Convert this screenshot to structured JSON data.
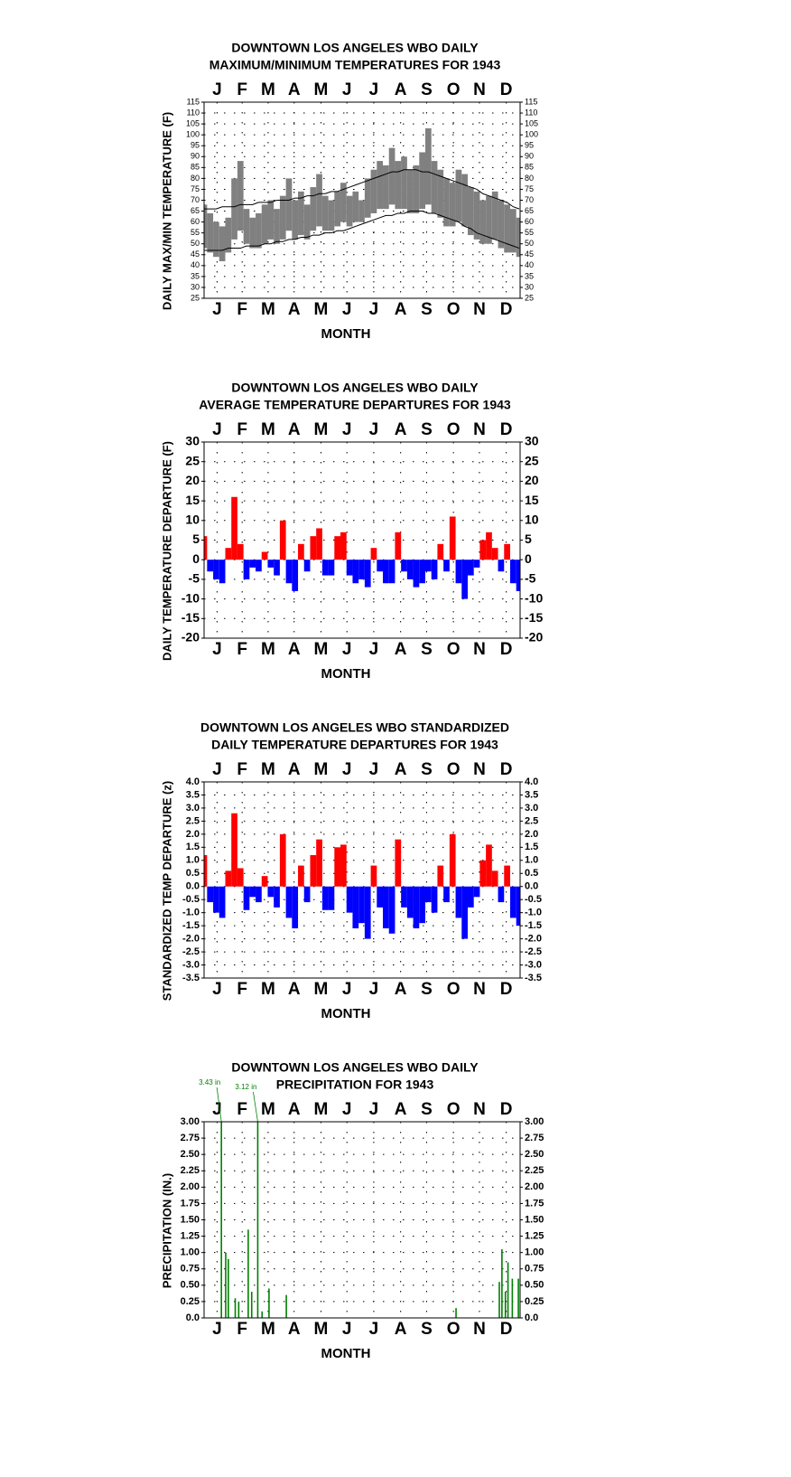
{
  "chart_data": [
    {
      "type": "range",
      "title": [
        "DOWNTOWN LOS ANGELES WBO DAILY",
        "MAXIMUM/MINIMUM TEMPERATURES FOR 1943"
      ],
      "xlabel": "MONTH",
      "ylabel": "DAILY MAX/MIN TEMPERATURE (F)",
      "xlim": [
        1,
        366
      ],
      "xticks": [
        {
          "value": 16,
          "label": "J"
        },
        {
          "value": 45,
          "label": "F"
        },
        {
          "value": 75,
          "label": "M"
        },
        {
          "value": 105,
          "label": "A"
        },
        {
          "value": 136,
          "label": "M"
        },
        {
          "value": 166,
          "label": "J"
        },
        {
          "value": 197,
          "label": "J"
        },
        {
          "value": 228,
          "label": "A"
        },
        {
          "value": 258,
          "label": "S"
        },
        {
          "value": 289,
          "label": "O"
        },
        {
          "value": 319,
          "label": "N"
        },
        {
          "value": 350,
          "label": "D"
        }
      ],
      "ylim": [
        25,
        115
      ],
      "yticks": [
        25,
        30,
        35,
        40,
        45,
        50,
        55,
        60,
        65,
        70,
        75,
        80,
        85,
        90,
        95,
        100,
        105,
        110,
        115
      ],
      "grid": true,
      "x": [
        1,
        8,
        15,
        22,
        29,
        36,
        43,
        50,
        57,
        64,
        71,
        78,
        85,
        92,
        99,
        106,
        113,
        120,
        127,
        134,
        141,
        148,
        155,
        162,
        169,
        176,
        183,
        190,
        197,
        204,
        211,
        218,
        225,
        232,
        239,
        246,
        253,
        260,
        267,
        274,
        281,
        288,
        295,
        302,
        309,
        316,
        323,
        330,
        337,
        344,
        351,
        358,
        365
      ],
      "series": [
        {
          "role": "high",
          "color": "#808080",
          "values": [
            68,
            64,
            60,
            58,
            62,
            80,
            88,
            66,
            62,
            64,
            68,
            70,
            66,
            72,
            80,
            70,
            74,
            68,
            76,
            82,
            72,
            70,
            74,
            78,
            72,
            74,
            70,
            80,
            84,
            88,
            86,
            94,
            88,
            90,
            84,
            86,
            92,
            103,
            88,
            84,
            80,
            78,
            84,
            82,
            76,
            74,
            70,
            72,
            74,
            70,
            68,
            66,
            62
          ]
        },
        {
          "role": "low",
          "color": "#808080",
          "values": [
            48,
            46,
            44,
            42,
            46,
            52,
            56,
            50,
            48,
            48,
            50,
            52,
            50,
            52,
            56,
            52,
            54,
            52,
            56,
            58,
            56,
            56,
            58,
            60,
            58,
            60,
            60,
            62,
            64,
            66,
            66,
            68,
            66,
            66,
            64,
            64,
            66,
            68,
            64,
            62,
            58,
            58,
            60,
            58,
            54,
            52,
            50,
            50,
            52,
            48,
            46,
            46,
            44
          ]
        },
        {
          "role": "line",
          "color": "#000000",
          "values": [
            66,
            66,
            66,
            67,
            67,
            67,
            68,
            68,
            68,
            69,
            69,
            69,
            70,
            70,
            70,
            71,
            71,
            72,
            72,
            73,
            73,
            74,
            74,
            75,
            76,
            77,
            78,
            79,
            80,
            81,
            82,
            83,
            83,
            84,
            84,
            84,
            83,
            83,
            82,
            81,
            80,
            79,
            78,
            77,
            76,
            75,
            73,
            72,
            71,
            70,
            69,
            67,
            66
          ]
        },
        {
          "role": "line",
          "color": "#000000",
          "values": [
            47,
            47,
            47,
            47,
            48,
            48,
            48,
            49,
            49,
            49,
            50,
            50,
            51,
            51,
            52,
            52,
            53,
            53,
            54,
            54,
            55,
            55,
            56,
            56,
            57,
            58,
            59,
            60,
            61,
            62,
            63,
            63,
            64,
            64,
            65,
            65,
            65,
            64,
            64,
            63,
            62,
            61,
            60,
            58,
            57,
            55,
            54,
            53,
            52,
            51,
            50,
            49,
            48
          ]
        }
      ]
    },
    {
      "type": "bar",
      "title": [
        "DOWNTOWN LOS ANGELES WBO DAILY",
        "AVERAGE TEMPERATURE DEPARTURES FOR 1943"
      ],
      "xlabel": "MONTH",
      "ylabel": "DAILY TEMPERATURE DEPARTURE (F)",
      "xlim": [
        1,
        366
      ],
      "xticks": [
        {
          "value": 16,
          "label": "J"
        },
        {
          "value": 45,
          "label": "F"
        },
        {
          "value": 75,
          "label": "M"
        },
        {
          "value": 105,
          "label": "A"
        },
        {
          "value": 136,
          "label": "M"
        },
        {
          "value": 166,
          "label": "J"
        },
        {
          "value": 197,
          "label": "J"
        },
        {
          "value": 228,
          "label": "A"
        },
        {
          "value": 258,
          "label": "S"
        },
        {
          "value": 289,
          "label": "O"
        },
        {
          "value": 319,
          "label": "N"
        },
        {
          "value": 350,
          "label": "D"
        }
      ],
      "ylim": [
        -20,
        30
      ],
      "yticks": [
        -20,
        -15,
        -10,
        -5,
        0,
        5,
        10,
        15,
        20,
        25,
        30
      ],
      "grid": true,
      "color_positive": "#ff0000",
      "color_negative": "#0000ff",
      "x": [
        1,
        8,
        15,
        22,
        29,
        36,
        43,
        50,
        57,
        64,
        71,
        78,
        85,
        92,
        99,
        106,
        113,
        120,
        127,
        134,
        141,
        148,
        155,
        162,
        169,
        176,
        183,
        190,
        197,
        204,
        211,
        218,
        225,
        232,
        239,
        246,
        253,
        260,
        267,
        274,
        281,
        288,
        295,
        302,
        309,
        316,
        323,
        330,
        337,
        344,
        351,
        358,
        365
      ],
      "values": [
        6,
        -3,
        -5,
        -6,
        3,
        16,
        4,
        -5,
        -2,
        -3,
        2,
        -2,
        -4,
        10,
        -6,
        -8,
        4,
        -3,
        6,
        8,
        -4,
        -4,
        6,
        7,
        -4,
        -6,
        -5,
        -7,
        3,
        -3,
        -6,
        -6,
        7,
        -3,
        -5,
        -7,
        -6,
        -3,
        -5,
        4,
        -3,
        11,
        -6,
        -10,
        -4,
        -2,
        5,
        7,
        3,
        -3,
        4,
        -6,
        -8
      ]
    },
    {
      "type": "bar",
      "title": [
        "DOWNTOWN LOS ANGELES WBO STANDARDIZED",
        "DAILY TEMPERATURE DEPARTURES FOR 1943"
      ],
      "xlabel": "MONTH",
      "ylabel": "STANDARDIZED TEMP DEPARTURE (z)",
      "xlim": [
        1,
        366
      ],
      "xticks": [
        {
          "value": 16,
          "label": "J"
        },
        {
          "value": 45,
          "label": "F"
        },
        {
          "value": 75,
          "label": "M"
        },
        {
          "value": 105,
          "label": "A"
        },
        {
          "value": 136,
          "label": "M"
        },
        {
          "value": 166,
          "label": "J"
        },
        {
          "value": 197,
          "label": "J"
        },
        {
          "value": 228,
          "label": "A"
        },
        {
          "value": 258,
          "label": "S"
        },
        {
          "value": 289,
          "label": "O"
        },
        {
          "value": 319,
          "label": "N"
        },
        {
          "value": 350,
          "label": "D"
        }
      ],
      "ylim": [
        -3.5,
        4
      ],
      "yticks": [
        -3.5,
        {
          "value": -3,
          "label": "-3.0"
        },
        -2.5,
        {
          "value": -2,
          "label": "-2.0"
        },
        -1.5,
        {
          "value": -1,
          "label": "-1.0"
        },
        -0.5,
        {
          "value": 0,
          "label": "0.0"
        },
        0.5,
        {
          "value": 1,
          "label": "1.0"
        },
        1.5,
        {
          "value": 2,
          "label": "2.0"
        },
        2.5,
        {
          "value": 3,
          "label": "3.0"
        },
        3.5,
        {
          "value": 4,
          "label": "4.0"
        }
      ],
      "grid": true,
      "color_positive": "#ff0000",
      "color_negative": "#0000ff",
      "x": [
        1,
        8,
        15,
        22,
        29,
        36,
        43,
        50,
        57,
        64,
        71,
        78,
        85,
        92,
        99,
        106,
        113,
        120,
        127,
        134,
        141,
        148,
        155,
        162,
        169,
        176,
        183,
        190,
        197,
        204,
        211,
        218,
        225,
        232,
        239,
        246,
        253,
        260,
        267,
        274,
        281,
        288,
        295,
        302,
        309,
        316,
        323,
        330,
        337,
        344,
        351,
        358,
        365
      ],
      "values": [
        1.2,
        -0.6,
        -1.0,
        -1.2,
        0.6,
        2.8,
        0.7,
        -0.9,
        -0.4,
        -0.6,
        0.4,
        -0.4,
        -0.8,
        2.0,
        -1.2,
        -1.6,
        0.8,
        -0.6,
        1.2,
        1.8,
        -0.9,
        -0.9,
        1.5,
        1.6,
        -1.0,
        -1.6,
        -1.4,
        -2.0,
        0.8,
        -0.8,
        -1.6,
        -1.8,
        1.8,
        -0.8,
        -1.2,
        -1.6,
        -1.4,
        -0.6,
        -1.0,
        0.8,
        -0.6,
        2.0,
        -1.2,
        -2.0,
        -0.8,
        -0.4,
        1.0,
        1.6,
        0.6,
        -0.6,
        0.8,
        -1.2,
        -1.5
      ]
    },
    {
      "type": "spike",
      "title": [
        "DOWNTOWN LOS ANGELES WBO DAILY",
        "PRECIPITATION FOR 1943"
      ],
      "xlabel": "MONTH",
      "ylabel": "PRECIPITATION (IN.)",
      "xlim": [
        1,
        366
      ],
      "xticks": [
        {
          "value": 16,
          "label": "J"
        },
        {
          "value": 45,
          "label": "F"
        },
        {
          "value": 75,
          "label": "M"
        },
        {
          "value": 105,
          "label": "A"
        },
        {
          "value": 136,
          "label": "M"
        },
        {
          "value": 166,
          "label": "J"
        },
        {
          "value": 197,
          "label": "J"
        },
        {
          "value": 228,
          "label": "A"
        },
        {
          "value": 258,
          "label": "S"
        },
        {
          "value": 289,
          "label": "O"
        },
        {
          "value": 319,
          "label": "N"
        },
        {
          "value": 350,
          "label": "D"
        }
      ],
      "ylim": [
        0,
        3
      ],
      "yticks": [
        {
          "value": 0,
          "label": "0.0"
        },
        0.25,
        {
          "value": 0.5,
          "label": "0.50"
        },
        0.75,
        {
          "value": 1,
          "label": "1.00"
        },
        1.25,
        {
          "value": 1.5,
          "label": "1.50"
        },
        1.75,
        {
          "value": 2,
          "label": "2.00"
        },
        2.25,
        {
          "value": 2.5,
          "label": "2.50"
        },
        2.75,
        {
          "value": 3,
          "label": "3.00"
        }
      ],
      "grid": true,
      "color": "#008000",
      "x": [
        21,
        26,
        29,
        37,
        41,
        52,
        56,
        63,
        68,
        76,
        96,
        292,
        342,
        345,
        349,
        352,
        357,
        364
      ],
      "values": [
        3.43,
        1.0,
        0.9,
        0.3,
        0.25,
        1.35,
        0.4,
        3.12,
        0.1,
        0.45,
        0.35,
        0.15,
        0.55,
        1.05,
        0.4,
        0.85,
        0.6,
        0.6
      ],
      "value_labels": [
        "3.43 in",
        null,
        null,
        null,
        null,
        null,
        null,
        "3.12 in",
        null,
        null,
        null,
        null,
        null,
        null,
        null,
        null,
        null,
        null
      ]
    }
  ]
}
